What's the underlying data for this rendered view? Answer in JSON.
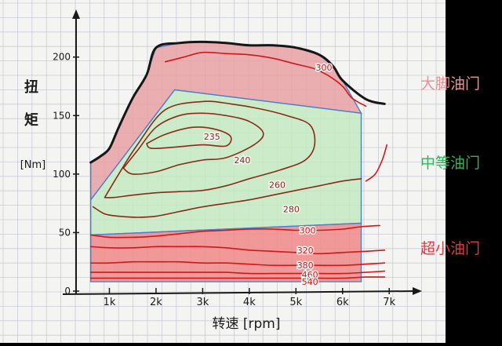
{
  "chart_data": {
    "type": "line",
    "title": "",
    "ylabel_chars": [
      "扭",
      "矩"
    ],
    "ylabel_unit": "[Nm]",
    "xlabel": "转速 [rpm]",
    "xlim": [
      0,
      7400
    ],
    "ylim": [
      0,
      230
    ],
    "x_ticks": [
      {
        "value": 1000,
        "label": "1k"
      },
      {
        "value": 2000,
        "label": "2k"
      },
      {
        "value": 3000,
        "label": "3k"
      },
      {
        "value": 4000,
        "label": "4k"
      },
      {
        "value": 5000,
        "label": "5k"
      },
      {
        "value": 6000,
        "label": "6k"
      },
      {
        "value": 7000,
        "label": "7k"
      }
    ],
    "y_ticks": [
      {
        "value": 0,
        "label": "0"
      },
      {
        "value": 50,
        "label": "50"
      },
      {
        "value": 100,
        "label": "100"
      },
      {
        "value": 150,
        "label": "150"
      },
      {
        "value": 200,
        "label": "200"
      }
    ],
    "grid": true,
    "max_torque_curve": {
      "x": [
        600,
        800,
        1000,
        1200,
        1500,
        1800,
        2000,
        2500,
        3000,
        3500,
        4000,
        4500,
        5000,
        5500,
        5800,
        6000,
        6500,
        6900
      ],
      "y": [
        110,
        115,
        122,
        140,
        165,
        185,
        208,
        212,
        213,
        212,
        210,
        210,
        208,
        202,
        192,
        180,
        164,
        160
      ]
    },
    "regions": [
      {
        "name": "大脚油门",
        "color": "#e8a0a4",
        "label_color": "#ef8f96",
        "polygon": [
          [
            600,
            110
          ],
          [
            800,
            115
          ],
          [
            1000,
            122
          ],
          [
            1200,
            140
          ],
          [
            1500,
            165
          ],
          [
            1800,
            185
          ],
          [
            2000,
            208
          ],
          [
            2500,
            212
          ],
          [
            3000,
            213
          ],
          [
            3500,
            212
          ],
          [
            4000,
            210
          ],
          [
            4500,
            210
          ],
          [
            5000,
            208
          ],
          [
            5500,
            202
          ],
          [
            5800,
            192
          ],
          [
            6000,
            180
          ],
          [
            6400,
            152
          ],
          [
            2400,
            172
          ],
          [
            600,
            78
          ]
        ]
      },
      {
        "name": "中等油门",
        "color": "#c3e9c2",
        "label_color": "#34b25a",
        "polygon": [
          [
            600,
            78
          ],
          [
            2400,
            172
          ],
          [
            6400,
            152
          ],
          [
            6400,
            58
          ],
          [
            600,
            48
          ]
        ]
      },
      {
        "name": "超小油门",
        "color": "#f08888",
        "label_color": "#e8353e",
        "polygon": [
          [
            600,
            48
          ],
          [
            6400,
            58
          ],
          [
            6400,
            8
          ],
          [
            600,
            8
          ]
        ]
      }
    ],
    "contours": [
      {
        "label": "235",
        "color": "#8a2a18",
        "x": [
          1800,
          2200,
          2800,
          3300,
          3600,
          3500,
          3000,
          2400,
          1900,
          1800
        ],
        "y": [
          126,
          134,
          140,
          138,
          132,
          124,
          125,
          123,
          122,
          126
        ]
      },
      {
        "label": "240",
        "color": "#8a2a18",
        "x": [
          1300,
          1600,
          2000,
          2500,
          3000,
          3500,
          4000,
          4300,
          4100,
          3500,
          3000,
          2500,
          2000,
          1500,
          1300
        ],
        "y": [
          105,
          120,
          140,
          150,
          152,
          150,
          145,
          135,
          125,
          114,
          112,
          108,
          102,
          100,
          105
        ]
      },
      {
        "label": "260",
        "color": "#8a2a18",
        "x": [
          900,
          1200,
          1600,
          2200,
          3000,
          3600,
          4200,
          4800,
          5300,
          5400,
          5200,
          4700,
          4000,
          3500,
          3000,
          2500,
          2000,
          1500,
          1100,
          900
        ],
        "y": [
          80,
          100,
          125,
          155,
          162,
          160,
          156,
          150,
          142,
          125,
          112,
          104,
          96,
          90,
          86,
          85,
          84,
          82,
          80,
          80
        ]
      },
      {
        "label": "280",
        "color": "#8a2a18",
        "x": [
          650,
          900,
          1200,
          1600,
          2000,
          2500,
          3000,
          3500,
          4000,
          4500,
          5000,
          5500,
          6000,
          6400
        ],
        "y": [
          72,
          66,
          64,
          63,
          64,
          68,
          72,
          75,
          78,
          82,
          86,
          90,
          94,
          96
        ]
      },
      {
        "label": "300",
        "color": "#d01818",
        "x": [
          600,
          1000,
          1500,
          2000,
          2500,
          3000,
          3500,
          4000,
          4500,
          5000,
          5500,
          6000,
          6400,
          6800
        ],
        "y": [
          48,
          46,
          46,
          47,
          49,
          51,
          52,
          53,
          53,
          52,
          52,
          53,
          55,
          56
        ]
      },
      {
        "label": "300",
        "color": "#d01818",
        "x": [
          2200,
          2600,
          3000,
          3500,
          4000,
          4500,
          5000,
          5400,
          5700,
          6000,
          6200,
          6500
        ],
        "y": [
          196,
          200,
          204,
          203,
          202,
          199,
          194,
          190,
          184,
          175,
          165,
          158
        ]
      },
      {
        "label": "320",
        "color": "#d01818",
        "x": [
          600,
          1000,
          1500,
          2000,
          2500,
          3000,
          3500,
          4000,
          4500,
          5000,
          5500,
          6000,
          6500,
          6900
        ],
        "y": [
          38,
          37,
          37,
          38,
          38,
          38,
          37,
          35,
          34,
          33,
          32,
          33,
          34,
          35
        ]
      },
      {
        "label": "380",
        "color": "#d01818",
        "x": [
          600,
          1000,
          1500,
          2000,
          2500,
          3000,
          3500,
          4000,
          4500,
          5000,
          5500,
          6000,
          6500,
          6900
        ],
        "y": [
          24,
          24,
          25,
          25,
          25,
          24,
          24,
          23,
          22,
          22,
          22,
          22,
          23,
          24
        ]
      },
      {
        "label": "460",
        "color": "#d01818",
        "x": [
          600,
          1000,
          1500,
          2000,
          2500,
          3000,
          3500,
          4000,
          4500,
          5000,
          5500,
          6000,
          6500,
          6900
        ],
        "y": [
          16,
          16,
          16,
          16,
          16,
          16,
          16,
          15,
          15,
          15,
          15,
          15,
          16,
          17
        ]
      },
      {
        "label": "540",
        "color": "#d01818",
        "x": [
          600,
          1000,
          1500,
          2000,
          2500,
          3000,
          3500,
          4000,
          4500,
          5000,
          5500,
          6000,
          6500,
          6900
        ],
        "y": [
          11,
          11,
          11,
          11,
          11,
          11,
          11,
          11,
          11,
          11,
          11,
          11,
          12,
          12
        ]
      }
    ],
    "contour_labels": [
      {
        "label": "235",
        "x": 3200,
        "y": 132,
        "color": "#8a2a18"
      },
      {
        "label": "240",
        "x": 3850,
        "y": 112,
        "color": "#8a2a18"
      },
      {
        "label": "260",
        "x": 4600,
        "y": 91,
        "color": "#8a2a18"
      },
      {
        "label": "280",
        "x": 4900,
        "y": 70,
        "color": "#8a2a18"
      },
      {
        "label": "300",
        "x": 5250,
        "y": 52,
        "color": "#d01818"
      },
      {
        "label": "300",
        "x": 5600,
        "y": 191,
        "color": "#d01818"
      },
      {
        "label": "320",
        "x": 5200,
        "y": 35,
        "color": "#d01818"
      },
      {
        "label": "380",
        "x": 5200,
        "y": 22,
        "color": "#d01818"
      },
      {
        "label": "460",
        "x": 5300,
        "y": 14,
        "color": "#d01818"
      },
      {
        "label": "540",
        "x": 5300,
        "y": 8,
        "color": "#d01818"
      }
    ],
    "extra_curves": [
      {
        "color": "#d01818",
        "x": [
          6500,
          6700,
          6850,
          6950
        ],
        "y": [
          94,
          100,
          112,
          125
        ]
      }
    ]
  }
}
